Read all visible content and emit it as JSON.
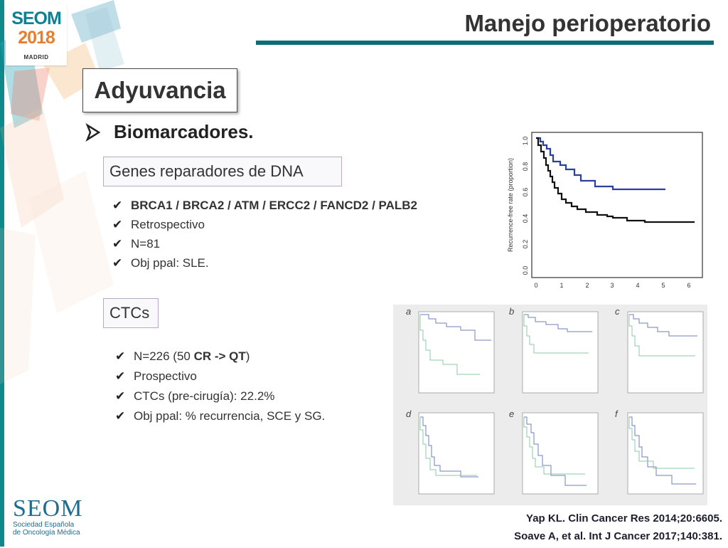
{
  "header": {
    "title": "Manejo perioperatorio",
    "logo": {
      "line1": "SEOM",
      "line2": "2018",
      "line3": "MADRID"
    }
  },
  "section": {
    "title": "Adyuvancia"
  },
  "biomarcadores": {
    "label": "Biomarcadores."
  },
  "genes": {
    "box_label": "Genes reparadores de DNA",
    "items": [
      {
        "text": "BRCA1 / BRCA2 / ATM / ERCC2 / FANCD2 / PALB2"
      },
      {
        "text": "Retrospectivo"
      },
      {
        "text": "N=81"
      },
      {
        "text": "Obj ppal: SLE."
      }
    ]
  },
  "ctcs": {
    "box_label": "CTCs",
    "items": [
      {
        "prefix": "N=226 (50 ",
        "bold": "CR -> QT",
        "suffix": ")"
      },
      {
        "text": "Prospectivo"
      },
      {
        "text": "CTCs (pre-cirugía): 22.2%"
      },
      {
        "text": "Obj ppal: % recurrencia, SCE y SG."
      }
    ]
  },
  "km_chart": {
    "ylabel": "Recurrence-free rate (proportion)",
    "yticks": [
      "0.0",
      "0.2",
      "0.4",
      "0.6",
      "0.8",
      "1.0"
    ],
    "xticks": [
      "0",
      "1",
      "2",
      "3",
      "4",
      "5",
      "6"
    ],
    "colors": {
      "blue": "#2a3f9e",
      "black": "#111111"
    }
  },
  "panel": {
    "letters": [
      "a",
      "b",
      "c",
      "d",
      "e",
      "f"
    ],
    "colors": {
      "blue": "#6f7fbe",
      "green": "#8ec9a5"
    }
  },
  "references": [
    "Yap KL. Clin Cancer Res 2014;20:6605.",
    "Soave A, et al. Int J Cancer 2017;140:381."
  ],
  "footer": {
    "org": "SEOM",
    "sub1": "Sociedad Española",
    "sub2": "de Oncología Médica"
  }
}
